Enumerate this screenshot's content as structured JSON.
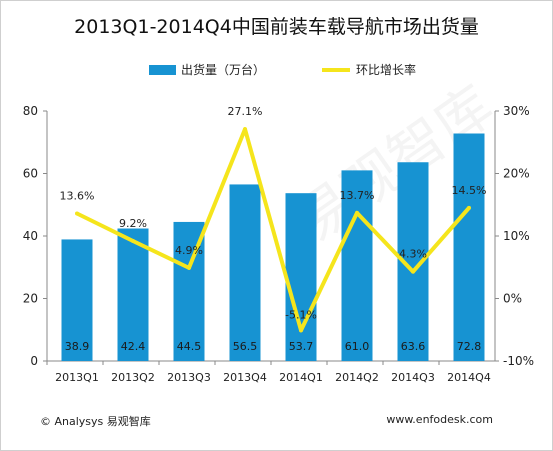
{
  "header": {
    "title": "2013Q1-2014Q4中国前装车载导航市场出货量"
  },
  "footer": {
    "left": "© Analysys 易观智库",
    "right": "www.enfodesk.com"
  },
  "watermark": "易观智库",
  "colors": {
    "bar": "#1793d2",
    "line": "#f5e51c"
  },
  "chart_data": {
    "type": "bar",
    "categories": [
      "2013Q1",
      "2013Q2",
      "2013Q3",
      "2013Q4",
      "2014Q1",
      "2014Q2",
      "2014Q3",
      "2014Q4"
    ],
    "series": [
      {
        "name": "出货量（万台）",
        "type": "bar",
        "axis": "left",
        "values": [
          38.9,
          42.4,
          44.5,
          56.5,
          53.7,
          61.0,
          63.6,
          72.8
        ],
        "labels": [
          "38.9",
          "42.4",
          "44.5",
          "56.5",
          "53.7",
          "61.0",
          "63.6",
          "72.8"
        ]
      },
      {
        "name": "环比增长率",
        "type": "line",
        "axis": "right",
        "values": [
          13.6,
          9.2,
          4.9,
          27.1,
          -5.1,
          13.7,
          4.3,
          14.5
        ],
        "labels": [
          "13.6%",
          "9.2%",
          "4.9%",
          "27.1%",
          "-5.1%",
          "13.7%",
          "4.3%",
          "14.5%"
        ]
      }
    ],
    "y_left": {
      "min": 0,
      "max": 80,
      "ticks": [
        "0",
        "20",
        "40",
        "60",
        "80"
      ]
    },
    "y_right": {
      "min": -10,
      "max": 30,
      "ticks": [
        "-10%",
        "0%",
        "10%",
        "20%",
        "30%"
      ]
    },
    "grid": false,
    "legend_position": "top"
  }
}
